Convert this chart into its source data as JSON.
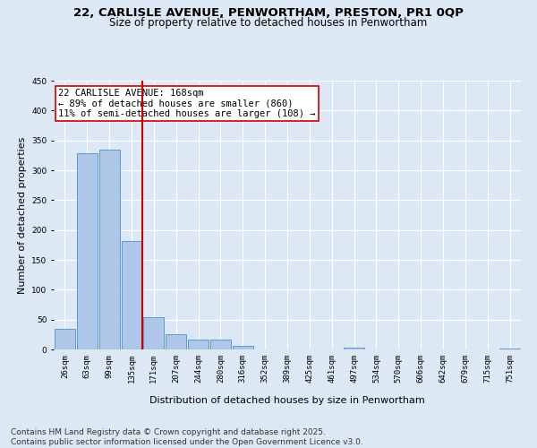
{
  "title_line1": "22, CARLISLE AVENUE, PENWORTHAM, PRESTON, PR1 0QP",
  "title_line2": "Size of property relative to detached houses in Penwortham",
  "xlabel": "Distribution of detached houses by size in Penwortham",
  "ylabel": "Number of detached properties",
  "bar_labels": [
    "26sqm",
    "63sqm",
    "99sqm",
    "135sqm",
    "171sqm",
    "207sqm",
    "244sqm",
    "280sqm",
    "316sqm",
    "352sqm",
    "389sqm",
    "425sqm",
    "461sqm",
    "497sqm",
    "534sqm",
    "570sqm",
    "606sqm",
    "642sqm",
    "679sqm",
    "715sqm",
    "751sqm"
  ],
  "bar_values": [
    35,
    328,
    335,
    181,
    54,
    25,
    16,
    16,
    6,
    0,
    0,
    0,
    0,
    3,
    0,
    0,
    0,
    0,
    0,
    0,
    2
  ],
  "bar_color": "#aec6e8",
  "bar_edge_color": "#5b9bd5",
  "vline_x_idx": 4,
  "vline_color": "#cc0000",
  "annotation_text": "22 CARLISLE AVENUE: 168sqm\n← 89% of detached houses are smaller (860)\n11% of semi-detached houses are larger (108) →",
  "annotation_box_color": "#ffffff",
  "annotation_box_edgecolor": "#cc0000",
  "ylim": [
    0,
    450
  ],
  "yticks": [
    0,
    50,
    100,
    150,
    200,
    250,
    300,
    350,
    400,
    450
  ],
  "background_color": "#dde8f5",
  "grid_color": "#ffffff",
  "footer_line1": "Contains HM Land Registry data © Crown copyright and database right 2025.",
  "footer_line2": "Contains public sector information licensed under the Open Government Licence v3.0.",
  "title_fontsize": 9.5,
  "subtitle_fontsize": 8.5,
  "axis_label_fontsize": 8,
  "tick_fontsize": 6.5,
  "annotation_fontsize": 7.5,
  "footer_fontsize": 6.5
}
